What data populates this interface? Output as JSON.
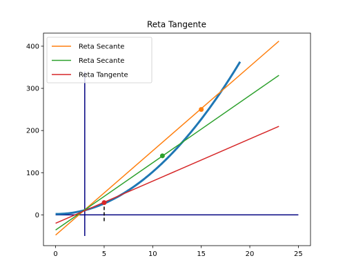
{
  "chart_data": {
    "type": "line",
    "title": "Reta Tangente",
    "xlabel": "",
    "ylabel": "",
    "xlim": [
      -1.25,
      26.25
    ],
    "ylim": [
      -73,
      431
    ],
    "x_ticks": [
      0,
      5,
      10,
      15,
      20,
      25
    ],
    "y_ticks": [
      0,
      100,
      200,
      300,
      400
    ],
    "grid": false,
    "legend_position": "top-left",
    "curve": {
      "function": "y = x^2 + 2",
      "x_range": [
        0,
        19
      ],
      "color": "#1f77b4",
      "line_width": 3
    },
    "series": [
      {
        "name": "Reta Secante",
        "color": "#ff7f0e",
        "x": [
          0,
          23
        ],
        "y": [
          -48,
          412
        ]
      },
      {
        "name": "Reta Secante",
        "color": "#2ca02c",
        "x": [
          0,
          23
        ],
        "y": [
          -36,
          331
        ]
      },
      {
        "name": "Reta Tangente",
        "color": "#d62728",
        "x": [
          0,
          23
        ],
        "y": [
          -20,
          210
        ]
      }
    ],
    "points": [
      {
        "x": 15,
        "y": 250,
        "color": "#ff7f0e"
      },
      {
        "x": 11,
        "y": 140,
        "color": "#2ca02c"
      },
      {
        "x": 5,
        "y": 29,
        "color": "#d62728"
      }
    ],
    "reference_lines": {
      "vertical_solid": {
        "x": 3,
        "y_from": -50,
        "y_to": 340,
        "color": "#000080"
      },
      "horizontal_solid": {
        "y": 0,
        "x_from": 0,
        "x_to": 25,
        "color": "#000080"
      },
      "vertical_dashed": {
        "x": 5,
        "y_from": -15,
        "y_to": 29,
        "color": "#000000"
      }
    }
  }
}
